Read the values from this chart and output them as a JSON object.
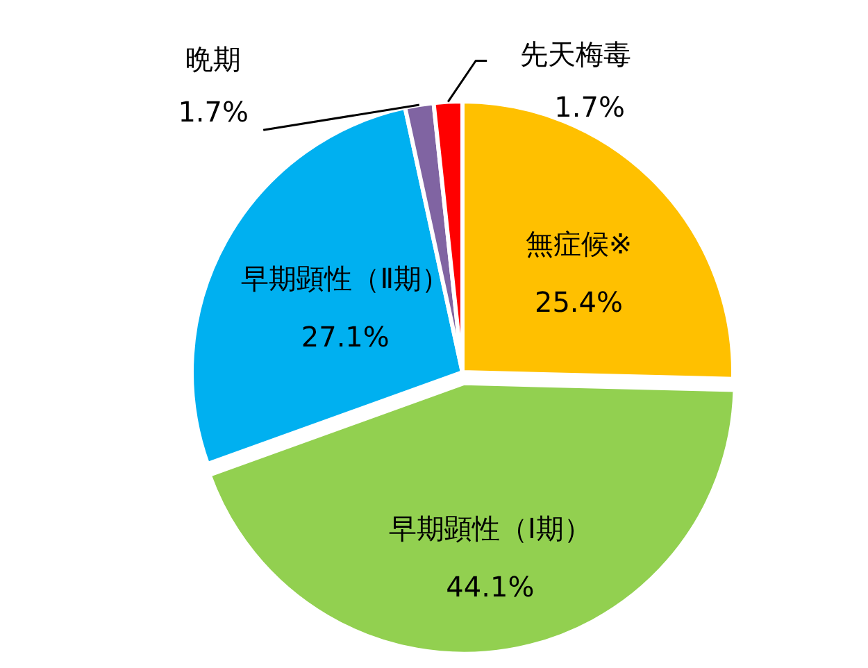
{
  "chart_data": {
    "type": "pie",
    "categories": [
      "無症候※",
      "早期顕性（Ⅰ期）",
      "早期顕性（Ⅱ期）",
      "晩期",
      "先天梅毒"
    ],
    "values": [
      25.4,
      44.1,
      27.1,
      1.7,
      1.7
    ],
    "colors": [
      "#ffc000",
      "#92d050",
      "#00b0f0",
      "#8064a2",
      "#ff0000"
    ],
    "value_labels": [
      "25.4%",
      "44.1%",
      "27.1%",
      "1.7%",
      "1.7%"
    ],
    "legend": false
  }
}
